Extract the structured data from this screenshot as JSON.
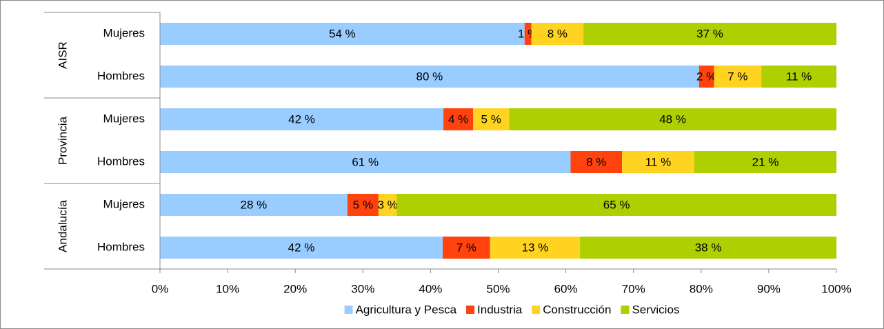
{
  "chart_data": {
    "type": "stacked-bar-horizontal",
    "groups": [
      {
        "name": "AISR",
        "size": 2
      },
      {
        "name": "Provincia",
        "size": 2
      },
      {
        "name": "Andalucía",
        "size": 2
      }
    ],
    "categories": [
      "Mujeres",
      "Hombres",
      "Mujeres",
      "Hombres",
      "Mujeres",
      "Hombres"
    ],
    "series": [
      {
        "name": "Agricultura y Pesca",
        "color": "#99ccff",
        "values": [
          53.9,
          79.7,
          41.9,
          60.7,
          27.7,
          41.8
        ],
        "value_labels": [
          "54 %",
          "80 %",
          "42 %",
          "61 %",
          "28 %",
          "42 %"
        ]
      },
      {
        "name": "Industria",
        "color": "#ff420e",
        "values": [
          1.0,
          2.2,
          4.4,
          7.6,
          4.6,
          7.0
        ],
        "value_labels": [
          "1 %",
          "2 %",
          "4 %",
          "8 %",
          "5 %",
          "7 %"
        ]
      },
      {
        "name": "Construcción",
        "color": "#ffd320",
        "values": [
          7.7,
          7.0,
          5.3,
          10.7,
          2.7,
          13.3
        ],
        "value_labels": [
          "8 %",
          "7 %",
          "5 %",
          "11 %",
          "3 %",
          "13 %"
        ]
      },
      {
        "name": "Servicios",
        "color": "#aecf00",
        "values": [
          37.4,
          11.1,
          48.4,
          21.0,
          65.0,
          37.9
        ],
        "value_labels": [
          "37 %",
          "11 %",
          "48 %",
          "21 %",
          "65 %",
          "38 %"
        ]
      }
    ],
    "xlim": [
      0,
      100
    ],
    "xticks": [
      {
        "value": 0,
        "label": "0%"
      },
      {
        "value": 10,
        "label": "10%"
      },
      {
        "value": 20,
        "label": "20%"
      },
      {
        "value": 30,
        "label": "30%"
      },
      {
        "value": 40,
        "label": "40%"
      },
      {
        "value": 50,
        "label": "50%"
      },
      {
        "value": 60,
        "label": "60%"
      },
      {
        "value": 70,
        "label": "70%"
      },
      {
        "value": 80,
        "label": "80%"
      },
      {
        "value": 90,
        "label": "90%"
      },
      {
        "value": 100,
        "label": "100%"
      }
    ],
    "legend": "bottom"
  }
}
